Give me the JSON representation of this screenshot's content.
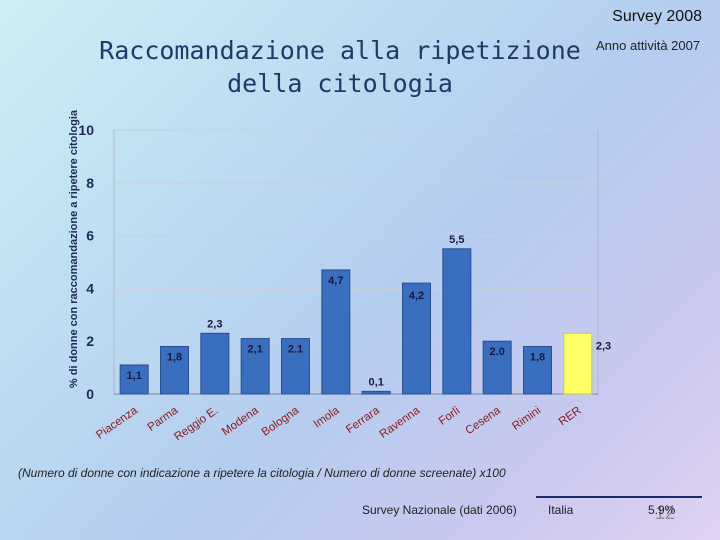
{
  "header": {
    "survey": "Survey 2008",
    "title_line1": "Raccomandazione alla ripetizione",
    "title_line2": "della citologia",
    "subtitle": "Anno attività 2007"
  },
  "colors": {
    "bar": "#3a6fc0",
    "highlight": "#ffff66",
    "axis": "#888888"
  },
  "chart_data": {
    "type": "bar",
    "ylabel": "% di donne con raccomandazione  a ripetere citologia",
    "ylim": [
      0,
      10
    ],
    "yticks": [
      "0",
      "2",
      "4",
      "6",
      "8",
      "10"
    ],
    "categories": [
      "Piacenza",
      "Parma",
      "Reggio E.",
      "Modena",
      "Bologna",
      "Imola",
      "Ferrara",
      "Ravenna",
      "Forlì",
      "Cesena",
      "Rimini",
      "RER"
    ],
    "values": [
      1.1,
      1.8,
      2.3,
      2.1,
      2.1,
      4.7,
      0.1,
      4.2,
      5.5,
      2.0,
      1.8,
      2.3
    ],
    "labels": [
      "1,1",
      "1,8",
      "2,3",
      "2,1",
      "2.1",
      "4,7",
      "0,1",
      "4,2",
      "5,5",
      "2.0",
      "1,8",
      "2,3"
    ],
    "highlight": "RER"
  },
  "footer": {
    "note": "(Numero di donne con indicazione a ripetere la citologia / Numero di donne screenate) x100",
    "survey_nazionale": "Survey Nazionale (dati 2006)",
    "italia": "Italia",
    "italia_value": "5.9%",
    "page": "12"
  }
}
